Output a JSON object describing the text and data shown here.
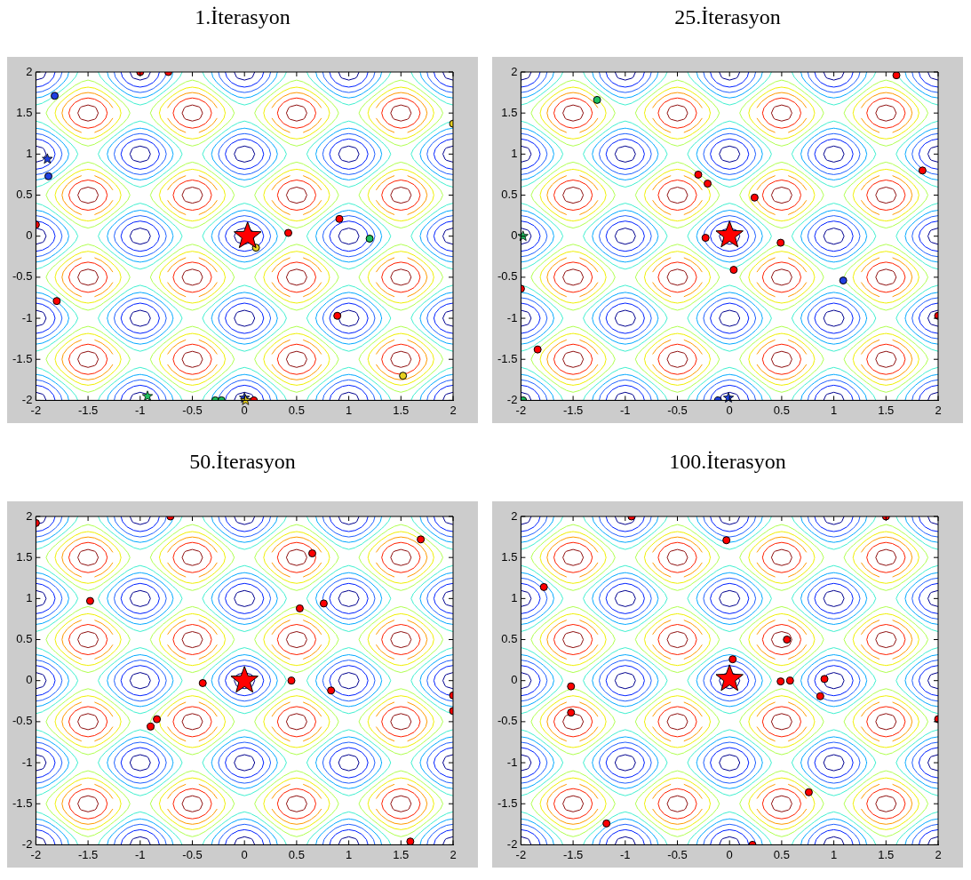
{
  "chart_data": [
    {
      "type": "scatter",
      "title": "1.İterasyon",
      "xlim": [
        -2,
        2
      ],
      "ylim": [
        -2,
        2
      ],
      "xticks": [
        -2,
        -1.5,
        -1,
        -0.5,
        0,
        0.5,
        1,
        1.5,
        2
      ],
      "yticks": [
        -2,
        -1.5,
        -1,
        -0.5,
        0,
        0.5,
        1,
        1.5,
        2
      ],
      "grid": false,
      "marker": "circle",
      "series": [
        {
          "color": "#ff0000",
          "x": [
            -1.0,
            -0.73,
            -2,
            -1.8,
            0.91,
            0.42,
            0.89,
            0.09
          ],
          "values": [
            2,
            2,
            0.14,
            -0.79,
            0.21,
            0.04,
            -0.97,
            -2
          ]
        },
        {
          "color": "#2040e0",
          "x": [
            -1.82,
            -1.88
          ],
          "values": [
            1.71,
            0.73
          ]
        },
        {
          "color": "#e8d020",
          "x": [
            2,
            0.11,
            1.52
          ],
          "values": [
            1.37,
            -0.14,
            -1.7
          ]
        },
        {
          "color": "#20c060",
          "x": [
            1.2,
            -0.28,
            -0.22
          ],
          "values": [
            -0.03,
            -2,
            -2
          ]
        },
        {
          "color": "#ff0000",
          "marker": "star",
          "x": [
            0.03
          ],
          "values": [
            0
          ]
        },
        {
          "color": "#2040e0",
          "marker": "star",
          "x": [
            -1.89,
            0
          ],
          "values": [
            0.94,
            -1.97
          ]
        },
        {
          "color": "#20c060",
          "marker": "star",
          "x": [
            -0.93
          ],
          "values": [
            -1.95
          ]
        },
        {
          "color": "#e8d020",
          "marker": "star",
          "x": [
            0.01
          ],
          "values": [
            -2
          ]
        }
      ]
    },
    {
      "type": "scatter",
      "title": "25.İterasyon",
      "xlim": [
        -2,
        2
      ],
      "ylim": [
        -2,
        2
      ],
      "xticks": [
        -2,
        -1.5,
        -1,
        -0.5,
        0,
        0.5,
        1,
        1.5,
        2
      ],
      "yticks": [
        -2,
        -1.5,
        -1,
        -0.5,
        0,
        0.5,
        1,
        1.5,
        2
      ],
      "grid": false,
      "marker": "circle",
      "series": [
        {
          "color": "#ff0000",
          "x": [
            1.6,
            -0.3,
            -0.21,
            0.24,
            -0.23,
            0.49,
            0.04,
            1.85,
            -2,
            2,
            -1.84
          ],
          "values": [
            1.96,
            0.75,
            0.64,
            0.47,
            -0.02,
            -0.08,
            -0.41,
            0.8,
            -0.64,
            -0.97,
            -1.38
          ]
        },
        {
          "color": "#2040e0",
          "x": [
            1.09,
            -0.11
          ],
          "values": [
            -0.54,
            -2
          ]
        },
        {
          "color": "#20c060",
          "x": [
            -1.27,
            -1.98
          ],
          "values": [
            1.66,
            -2
          ]
        },
        {
          "color": "#ff0000",
          "marker": "star",
          "x": [
            0
          ],
          "values": [
            0.01
          ]
        },
        {
          "color": "#2040e0",
          "marker": "star",
          "x": [
            -0.01
          ],
          "values": [
            -1.97
          ]
        },
        {
          "color": "#20c060",
          "marker": "star",
          "x": [
            -1.98
          ],
          "values": [
            0
          ]
        }
      ]
    },
    {
      "type": "scatter",
      "title": "50.İterasyon",
      "xlim": [
        -2,
        2
      ],
      "ylim": [
        -2,
        2
      ],
      "xticks": [
        -2,
        -1.5,
        -1,
        -0.5,
        0,
        0.5,
        1,
        1.5,
        2
      ],
      "yticks": [
        -2,
        -1.5,
        -1,
        -0.5,
        0,
        0.5,
        1,
        1.5,
        2
      ],
      "grid": false,
      "marker": "circle",
      "series": [
        {
          "color": "#ff0000",
          "x": [
            -2,
            -0.71,
            0.65,
            1.69,
            -1.48,
            0.53,
            0.76,
            -0.4,
            0.45,
            0.83,
            2,
            2,
            -0.84,
            -0.9,
            1.59
          ],
          "values": [
            1.92,
            2,
            1.55,
            1.72,
            0.97,
            0.88,
            0.94,
            -0.03,
            0,
            -0.12,
            -0.18,
            -0.37,
            -0.47,
            -0.56,
            -1.96
          ]
        },
        {
          "color": "#ff0000",
          "marker": "star",
          "x": [
            0
          ],
          "values": [
            0
          ]
        }
      ]
    },
    {
      "type": "scatter",
      "title": "100.İterasyon",
      "xlim": [
        -2,
        2
      ],
      "ylim": [
        -2,
        2
      ],
      "xticks": [
        -2,
        -1.5,
        -1,
        -0.5,
        0,
        0.5,
        1,
        1.5,
        2
      ],
      "yticks": [
        -2,
        -1.5,
        -1,
        -0.5,
        0,
        0.5,
        1,
        1.5,
        2
      ],
      "grid": false,
      "marker": "circle",
      "series": [
        {
          "color": "#ff0000",
          "x": [
            -0.94,
            1.5,
            -0.03,
            -1.78,
            0.55,
            0.03,
            0.49,
            0.58,
            0.91,
            0.87,
            -1.52,
            -1.52,
            2,
            0.76,
            -1.18,
            0.22
          ],
          "values": [
            2,
            2,
            1.71,
            1.14,
            0.5,
            0.26,
            -0.01,
            0,
            0.02,
            -0.19,
            -0.07,
            -0.39,
            -0.47,
            -1.36,
            -1.74,
            -2
          ]
        },
        {
          "color": "#ff0000",
          "marker": "star",
          "x": [
            0
          ],
          "values": [
            0.02
          ]
        }
      ]
    }
  ]
}
